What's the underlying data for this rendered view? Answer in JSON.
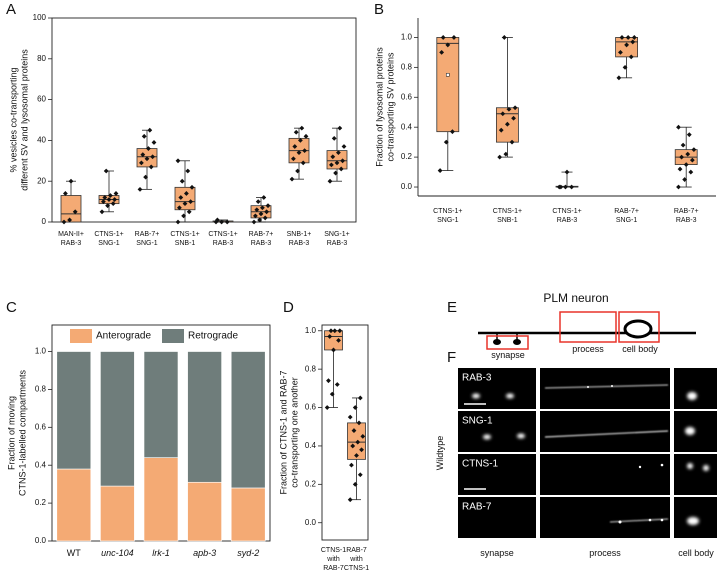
{
  "panel_labels": [
    "A",
    "B",
    "C",
    "D",
    "E",
    "F"
  ],
  "chart_data": [
    {
      "type": "box",
      "ylabel": "% vesicles co-transporting\ndifferent SV and lysosomal proteins",
      "categories": [
        "MAN-II+\nRAB-3",
        "CTNS-1+\nSNG-1",
        "RAB-7+\nSNG-1",
        "CTNS-1+\nSNB-1",
        "CTNS-1+\nRAB-3",
        "RAB-7+\nRAB-3",
        "SNB-1+\nRAB-3",
        "SNG-1+\nRAB-3"
      ],
      "color": "#f4aa74",
      "ylim": [
        0,
        100
      ],
      "yticks": [
        0,
        20,
        40,
        60,
        80,
        100
      ],
      "boxes": [
        {
          "q1": 0,
          "median": 4,
          "q3": 13,
          "whisker_low": 0,
          "whisker_high": 20,
          "points": [
            0,
            1,
            5,
            14,
            20
          ]
        },
        {
          "q1": 9,
          "median": 11,
          "q3": 13,
          "whisker_low": 5,
          "whisker_high": 25,
          "points": [
            5,
            8,
            9,
            10,
            11,
            11,
            12,
            13,
            14,
            25
          ]
        },
        {
          "q1": 27,
          "median": 32,
          "q3": 36,
          "whisker_low": 16,
          "whisker_high": 45,
          "points": [
            16,
            22,
            27,
            29,
            31,
            32,
            33,
            36,
            39,
            42,
            45
          ]
        },
        {
          "q1": 6,
          "median": 10,
          "q3": 17,
          "whisker_low": 0,
          "whisker_high": 30,
          "points": [
            0,
            3,
            5,
            7,
            9,
            10,
            12,
            14,
            17,
            20,
            25,
            30
          ]
        },
        {
          "q1": 0,
          "median": 0,
          "q3": 0.5,
          "whisker_low": 0,
          "whisker_high": 1,
          "points": [
            0,
            0,
            0,
            1
          ]
        },
        {
          "q1": 2,
          "median": 5,
          "q3": 8,
          "whisker_low": 0,
          "whisker_high": 12,
          "points": [
            0,
            1,
            2,
            3,
            4,
            5,
            6,
            7,
            8,
            10,
            12
          ]
        },
        {
          "q1": 29,
          "median": 35,
          "q3": 41,
          "whisker_low": 21,
          "whisker_high": 46,
          "points": [
            21,
            25,
            29,
            31,
            34,
            35,
            37,
            40,
            42,
            44,
            46
          ]
        },
        {
          "q1": 26,
          "median": 30,
          "q3": 35,
          "whisker_low": 20,
          "whisker_high": 46,
          "points": [
            20,
            24,
            26,
            28,
            29,
            30,
            32,
            34,
            37,
            41,
            46
          ]
        }
      ]
    },
    {
      "type": "box",
      "ylabel": "Fraction of lysosomal proteins\nco-transporting SV proteins",
      "categories": [
        "CTNS-1+\nSNG-1",
        "CTNS-1+\nSNB-1",
        "CTNS-1+\nRAB-3",
        "RAB-7+\nSNG-1",
        "RAB-7+\nRAB-3"
      ],
      "color": "#f4aa74",
      "ylim": [
        -0.06,
        1.13
      ],
      "yticks": [
        {
          "value": 0,
          "label": "0.0"
        },
        {
          "value": 0.2,
          "label": "0.2"
        },
        {
          "value": 0.4,
          "label": "0.4"
        },
        {
          "value": 0.6,
          "label": "0.6"
        },
        {
          "value": 0.8,
          "label": "0.8"
        },
        {
          "value": 1,
          "label": "1.0"
        }
      ],
      "boxes": [
        {
          "q1": 0.37,
          "median": 0.96,
          "q3": 1.0,
          "whisker_low": 0.11,
          "whisker_high": 1.0,
          "mean": 0.75,
          "points": [
            0.11,
            0.3,
            0.37,
            0.9,
            0.95,
            1.0,
            1.0
          ]
        },
        {
          "q1": 0.3,
          "median": 0.49,
          "q3": 0.53,
          "whisker_low": 0.2,
          "whisker_high": 1.0,
          "points": [
            0.2,
            0.22,
            0.3,
            0.38,
            0.42,
            0.46,
            0.49,
            0.52,
            0.53,
            1.0
          ]
        },
        {
          "q1": 0,
          "median": 0,
          "q3": 0.005,
          "whisker_low": 0,
          "whisker_high": 0.1,
          "points": [
            0,
            0,
            0,
            0,
            0.1
          ]
        },
        {
          "q1": 0.87,
          "median": 0.97,
          "q3": 1.0,
          "whisker_low": 0.73,
          "whisker_high": 1.0,
          "points": [
            0.73,
            0.8,
            0.87,
            0.9,
            0.95,
            0.97,
            1.0,
            1.0,
            1.0
          ]
        },
        {
          "q1": 0.15,
          "median": 0.2,
          "q3": 0.25,
          "whisker_low": 0.0,
          "whisker_high": 0.4,
          "points": [
            0,
            0.05,
            0.1,
            0.12,
            0.15,
            0.18,
            0.2,
            0.22,
            0.25,
            0.28,
            0.35,
            0.4
          ]
        }
      ]
    },
    {
      "type": "stacked_bar",
      "ylabel": "Fraction of moving\nCTNS-1-labelled compartments",
      "categories": [
        "WT",
        "unc-104",
        "lrk-1",
        "apb-3",
        "syd-2"
      ],
      "italic": [
        false,
        true,
        true,
        true,
        true
      ],
      "ylim": [
        0,
        1.14
      ],
      "yticks": [
        {
          "value": 0,
          "label": "0.0"
        },
        {
          "value": 0.2,
          "label": "0.2"
        },
        {
          "value": 0.4,
          "label": "0.4"
        },
        {
          "value": 0.6,
          "label": "0.6"
        },
        {
          "value": 0.8,
          "label": "0.8"
        },
        {
          "value": 1,
          "label": "1.0"
        }
      ],
      "series": [
        {
          "name": "Anterograde",
          "color": "#f4aa74",
          "values": [
            0.38,
            0.29,
            0.44,
            0.31,
            0.28
          ]
        },
        {
          "name": "Retrograde",
          "color": "#6f7d7b",
          "values": [
            0.62,
            0.71,
            0.56,
            0.69,
            0.72
          ]
        }
      ]
    },
    {
      "type": "box",
      "ylabel": "Fraction of CTNS-1 and RAB-7\nco-transporting one another",
      "categories": [
        "CTNS-1\nwith\nRAB-7",
        "RAB-7\nwith\nCTNS-1"
      ],
      "color": "#f4aa74",
      "ylim": [
        -0.09,
        1.03
      ],
      "yticks": [
        {
          "value": 0,
          "label": "0.0"
        },
        {
          "value": 0.2,
          "label": "0.2"
        },
        {
          "value": 0.4,
          "label": "0.4"
        },
        {
          "value": 0.6,
          "label": "0.6"
        },
        {
          "value": 0.8,
          "label": "0.8"
        },
        {
          "value": 1,
          "label": "1.0"
        }
      ],
      "boxes": [
        {
          "q1": 0.9,
          "median": 0.97,
          "q3": 1.0,
          "whisker_low": 0.6,
          "whisker_high": 1.0,
          "points": [
            0.6,
            0.67,
            0.72,
            0.74,
            0.9,
            0.95,
            0.97,
            1.0,
            1.0,
            1.0
          ]
        },
        {
          "q1": 0.33,
          "median": 0.42,
          "q3": 0.52,
          "whisker_low": 0.12,
          "whisker_high": 0.65,
          "points": [
            0.12,
            0.2,
            0.25,
            0.3,
            0.35,
            0.38,
            0.4,
            0.42,
            0.45,
            0.48,
            0.52,
            0.55,
            0.6,
            0.65
          ]
        }
      ]
    }
  ],
  "diagram": {
    "title": "PLM neuron",
    "labels": [
      "synapse",
      "process",
      "cell body"
    ]
  },
  "micrographs": {
    "condition": "Wildtype",
    "rows": [
      "RAB-3",
      "SNG-1",
      "CTNS-1",
      "RAB-7"
    ],
    "columns": [
      "synapse",
      "process",
      "cell body"
    ]
  }
}
